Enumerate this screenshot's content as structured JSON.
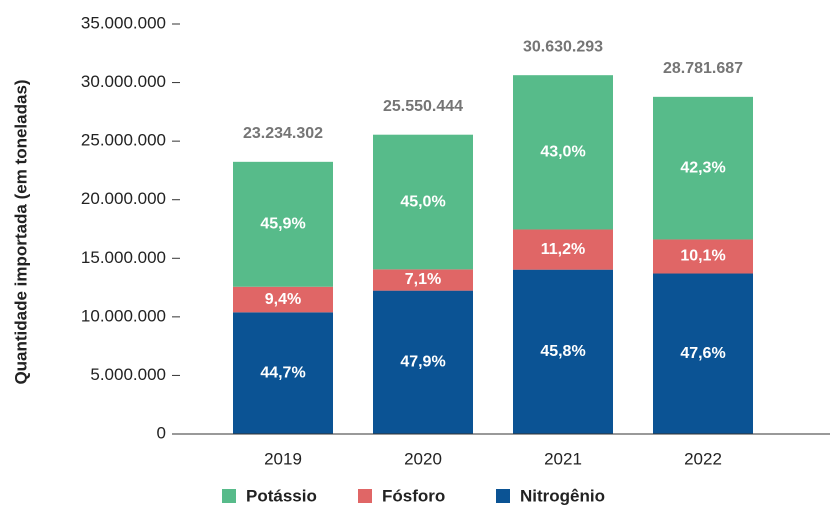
{
  "chart_data": {
    "type": "stacked_bar",
    "y_label": "Quantidade importada (em toneladas)",
    "categories": [
      "2019",
      "2020",
      "2021",
      "2022"
    ],
    "series": [
      {
        "name": "Nitrogênio",
        "color": "#0b5394",
        "values": [
          10385733,
          12238663,
          14028674,
          13700083
        ],
        "value_labels": [
          "44,7%",
          "47,9%",
          "45,8%",
          "47,6%"
        ]
      },
      {
        "name": "Fósforo",
        "color": "#e06666",
        "values": [
          2184024,
          1814082,
          3430593,
          2906950
        ],
        "value_labels": [
          "9,4%",
          "7,1%",
          "11,2%",
          "10,1%"
        ]
      },
      {
        "name": "Potássio",
        "color": "#57bb8a",
        "values": [
          10664545,
          11497699,
          13171026,
          12174654
        ],
        "value_labels": [
          "45,9%",
          "45,0%",
          "43,0%",
          "42,3%"
        ]
      }
    ],
    "totals": [
      23234302,
      25550444,
      30630293,
      28781687
    ],
    "total_labels": [
      "23.234.302",
      "25.550.444",
      "30.630.293",
      "28.781.687"
    ],
    "ylim": [
      0,
      35000000
    ],
    "yticks": [
      0,
      {
        "value": 5000000,
        "label": "5.000.000"
      },
      {
        "value": 10000000,
        "label": "10.000.000"
      },
      {
        "value": 15000000,
        "label": "15.000.000"
      },
      {
        "value": 20000000,
        "label": "20.000.000"
      },
      {
        "value": 25000000,
        "label": "25.000.000"
      },
      {
        "value": 30000000,
        "label": "30.000.000"
      },
      {
        "value": 35000000,
        "label": "35.000.000"
      }
    ],
    "legend_order": [
      2,
      1,
      0
    ]
  }
}
